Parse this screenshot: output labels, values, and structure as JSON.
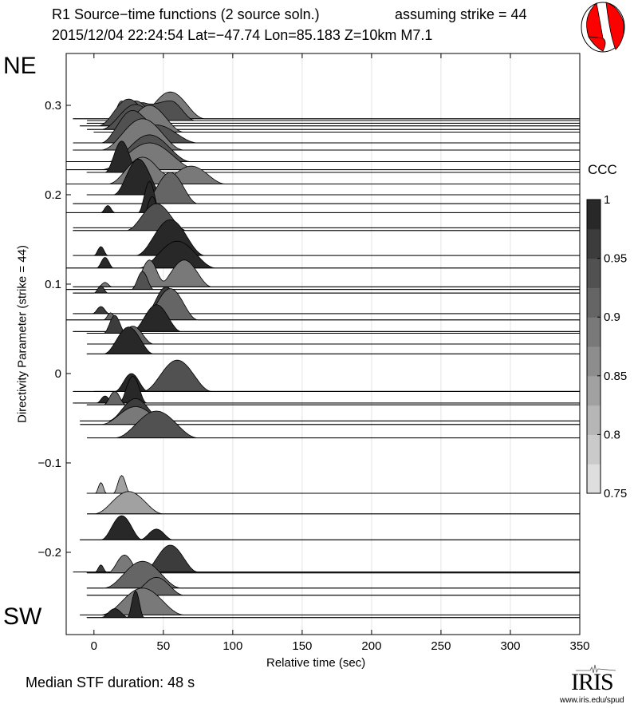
{
  "header": {
    "title": "R1 Source−time functions (2 source soln.)",
    "strike_note": "assuming strike = 44",
    "event": "2015/12/04 22:24:54  Lat=−47.74 Lon=85.183  Z=10km  M7.1"
  },
  "labels": {
    "ne": "NE",
    "sw": "SW",
    "median": "Median STF duration: 48 s"
  },
  "logo": {
    "name": "IRIS",
    "url": "www.iris.edu/spud"
  },
  "colors": {
    "beachball": "#ff0000"
  },
  "chart_data": {
    "type": "area",
    "title": "R1 Source-time functions (2 source soln.)",
    "xlabel": "Relative time (sec)",
    "ylabel": "Directivity Parameter (strike = 44)",
    "xlim": [
      -20,
      350
    ],
    "ylim": [
      -0.292,
      0.358
    ],
    "xticks": [
      0,
      50,
      100,
      150,
      200,
      250,
      300,
      350
    ],
    "xtick_labels": [
      "0",
      "50",
      "100",
      "150",
      "200",
      "250",
      "300",
      "350"
    ],
    "yticks": [
      0.3,
      0.2,
      0.1,
      0,
      -0.1,
      -0.2
    ],
    "ytick_labels": [
      "0.3",
      "0.2",
      "0.1",
      "0",
      "−0.1",
      "−0.2"
    ],
    "grid": "vertical",
    "colorbar": {
      "label": "CCC",
      "range": [
        0.75,
        1
      ],
      "ticks": [
        "1",
        "0.95",
        "0.9",
        "0.85",
        "0.8",
        "0.75"
      ],
      "tick_values": [
        1,
        0.95,
        0.9,
        0.85,
        0.8,
        0.75
      ]
    },
    "traces": [
      {
        "d": 0.285,
        "start": -15,
        "ccc": 0.88,
        "pulses": [
          [
            20,
            8,
            0.02
          ],
          [
            55,
            25,
            0.03
          ]
        ]
      },
      {
        "d": 0.283,
        "start": -5,
        "ccc": 0.95,
        "pulses": [
          [
            35,
            20,
            0.02
          ],
          [
            55,
            18,
            0.022
          ]
        ]
      },
      {
        "d": 0.28,
        "start": -5,
        "ccc": 0.9,
        "pulses": [
          [
            30,
            20,
            0.025
          ]
        ]
      },
      {
        "d": 0.277,
        "start": -10,
        "ccc": 0.95,
        "pulses": [
          [
            25,
            22,
            0.03
          ]
        ]
      },
      {
        "d": 0.273,
        "start": -5,
        "ccc": 0.93,
        "pulses": [
          [
            30,
            25,
            0.028
          ]
        ]
      },
      {
        "d": 0.27,
        "start": 0,
        "ccc": 0.88,
        "pulses": [
          [
            40,
            25,
            0.03
          ]
        ]
      },
      {
        "d": 0.258,
        "start": -15,
        "ccc": 0.93,
        "pulses": [
          [
            25,
            20,
            0.03
          ],
          [
            45,
            30,
            0.02
          ]
        ]
      },
      {
        "d": 0.25,
        "start": -15,
        "ccc": 0.88,
        "pulses": [
          [
            35,
            30,
            0.035
          ]
        ]
      },
      {
        "d": 0.237,
        "start": -20,
        "ccc": 0.95,
        "pulses": [
          [
            40,
            30,
            0.03
          ]
        ]
      },
      {
        "d": 0.228,
        "start": -20,
        "ccc": 0.88,
        "pulses": [
          [
            40,
            35,
            0.03
          ]
        ]
      },
      {
        "d": 0.225,
        "start": -5,
        "ccc": 0.98,
        "pulses": [
          [
            20,
            12,
            0.035
          ]
        ]
      },
      {
        "d": 0.212,
        "start": -20,
        "ccc": 0.88,
        "pulses": [
          [
            35,
            25,
            0.03
          ],
          [
            70,
            25,
            0.02
          ]
        ]
      },
      {
        "d": 0.2,
        "start": -5,
        "ccc": 0.99,
        "pulses": [
          [
            32,
            18,
            0.04
          ]
        ]
      },
      {
        "d": 0.19,
        "start": -15,
        "ccc": 0.9,
        "pulses": [
          [
            55,
            20,
            0.035
          ]
        ]
      },
      {
        "d": 0.18,
        "start": -20,
        "ccc": 0.98,
        "pulses": [
          [
            10,
            5,
            0.008
          ],
          [
            40,
            8,
            0.035
          ]
        ]
      },
      {
        "d": 0.163,
        "start": -15,
        "ccc": 0.98,
        "pulses": [
          [
            42,
            9,
            0.035
          ]
        ]
      },
      {
        "d": 0.16,
        "start": -15,
        "ccc": 0.93,
        "pulses": [
          [
            45,
            22,
            0.03
          ]
        ]
      },
      {
        "d": 0.132,
        "start": -15,
        "ccc": 0.99,
        "pulses": [
          [
            5,
            5,
            0.01
          ],
          [
            55,
            25,
            0.04
          ]
        ]
      },
      {
        "d": 0.118,
        "start": -20,
        "ccc": 0.98,
        "pulses": [
          [
            8,
            6,
            0.012
          ],
          [
            60,
            28,
            0.03
          ]
        ]
      },
      {
        "d": 0.097,
        "start": -15,
        "ccc": 0.88,
        "pulses": [
          [
            8,
            5,
            0.005
          ],
          [
            40,
            12,
            0.03
          ],
          [
            65,
            20,
            0.03
          ]
        ]
      },
      {
        "d": 0.094,
        "start": -20,
        "ccc": 0.93,
        "pulses": [
          [
            35,
            8,
            0.02
          ]
        ]
      },
      {
        "d": 0.09,
        "start": -15,
        "ccc": 0.96,
        "pulses": [
          [
            5,
            5,
            0.008
          ]
        ]
      },
      {
        "d": 0.067,
        "start": -15,
        "ccc": 0.97,
        "pulses": [
          [
            5,
            6,
            0.008
          ],
          [
            52,
            15,
            0.03
          ]
        ]
      },
      {
        "d": 0.06,
        "start": -20,
        "ccc": 0.9,
        "pulses": [
          [
            12,
            5,
            0.008
          ],
          [
            55,
            20,
            0.035
          ]
        ]
      },
      {
        "d": 0.047,
        "start": -15,
        "ccc": 0.98,
        "pulses": [
          [
            45,
            18,
            0.03
          ]
        ]
      },
      {
        "d": 0.045,
        "start": -5,
        "ccc": 0.96,
        "pulses": [
          [
            15,
            8,
            0.02
          ]
        ]
      },
      {
        "d": 0.033,
        "start": -5,
        "ccc": 0.9,
        "pulses": [
          [
            28,
            15,
            0.02
          ]
        ]
      },
      {
        "d": 0.022,
        "start": -5,
        "ccc": 0.99,
        "pulses": [
          [
            25,
            18,
            0.03
          ]
        ]
      },
      {
        "d": -0.02,
        "start": -15,
        "ccc": 0.93,
        "pulses": [
          [
            60,
            25,
            0.035
          ]
        ]
      },
      {
        "d": -0.02,
        "start": 0,
        "ccc": 0.99,
        "pulses": [
          [
            27,
            12,
            0.02
          ]
        ]
      },
      {
        "d": -0.033,
        "start": -15,
        "ccc": 0.98,
        "pulses": [
          [
            8,
            6,
            0.008
          ],
          [
            28,
            10,
            0.03
          ]
        ]
      },
      {
        "d": -0.035,
        "start": -5,
        "ccc": 0.92,
        "pulses": [
          [
            15,
            8,
            0.015
          ]
        ]
      },
      {
        "d": -0.053,
        "start": -10,
        "ccc": 0.96,
        "pulses": [
          [
            30,
            20,
            0.025
          ]
        ]
      },
      {
        "d": -0.057,
        "start": -10,
        "ccc": 0.88,
        "pulses": [
          [
            30,
            25,
            0.02
          ]
        ]
      },
      {
        "d": -0.072,
        "start": -5,
        "ccc": 0.93,
        "pulses": [
          [
            45,
            30,
            0.03
          ]
        ]
      },
      {
        "d": -0.134,
        "start": -5,
        "ccc": 0.85,
        "pulses": [
          [
            5,
            4,
            0.012
          ],
          [
            20,
            6,
            0.02
          ]
        ]
      },
      {
        "d": -0.157,
        "start": -5,
        "ccc": 0.85,
        "pulses": [
          [
            25,
            25,
            0.025
          ]
        ]
      },
      {
        "d": -0.186,
        "start": -10,
        "ccc": 0.99,
        "pulses": [
          [
            20,
            15,
            0.027
          ],
          [
            45,
            12,
            0.012
          ]
        ]
      },
      {
        "d": -0.222,
        "start": -15,
        "ccc": 0.97,
        "pulses": [
          [
            5,
            4,
            0.008
          ],
          [
            55,
            20,
            0.03
          ]
        ]
      },
      {
        "d": -0.223,
        "start": -5,
        "ccc": 0.88,
        "pulses": [
          [
            22,
            12,
            0.02
          ]
        ]
      },
      {
        "d": -0.24,
        "start": -5,
        "ccc": 0.92,
        "pulses": [
          [
            35,
            28,
            0.03
          ]
        ]
      },
      {
        "d": -0.248,
        "start": -5,
        "ccc": 0.9,
        "pulses": [
          [
            45,
            20,
            0.02
          ]
        ]
      },
      {
        "d": -0.27,
        "start": -10,
        "ccc": 0.88,
        "pulses": [
          [
            35,
            30,
            0.03
          ]
        ]
      },
      {
        "d": -0.273,
        "start": -5,
        "ccc": 0.98,
        "pulses": [
          [
            15,
            10,
            0.01
          ],
          [
            30,
            6,
            0.03
          ]
        ]
      }
    ]
  }
}
